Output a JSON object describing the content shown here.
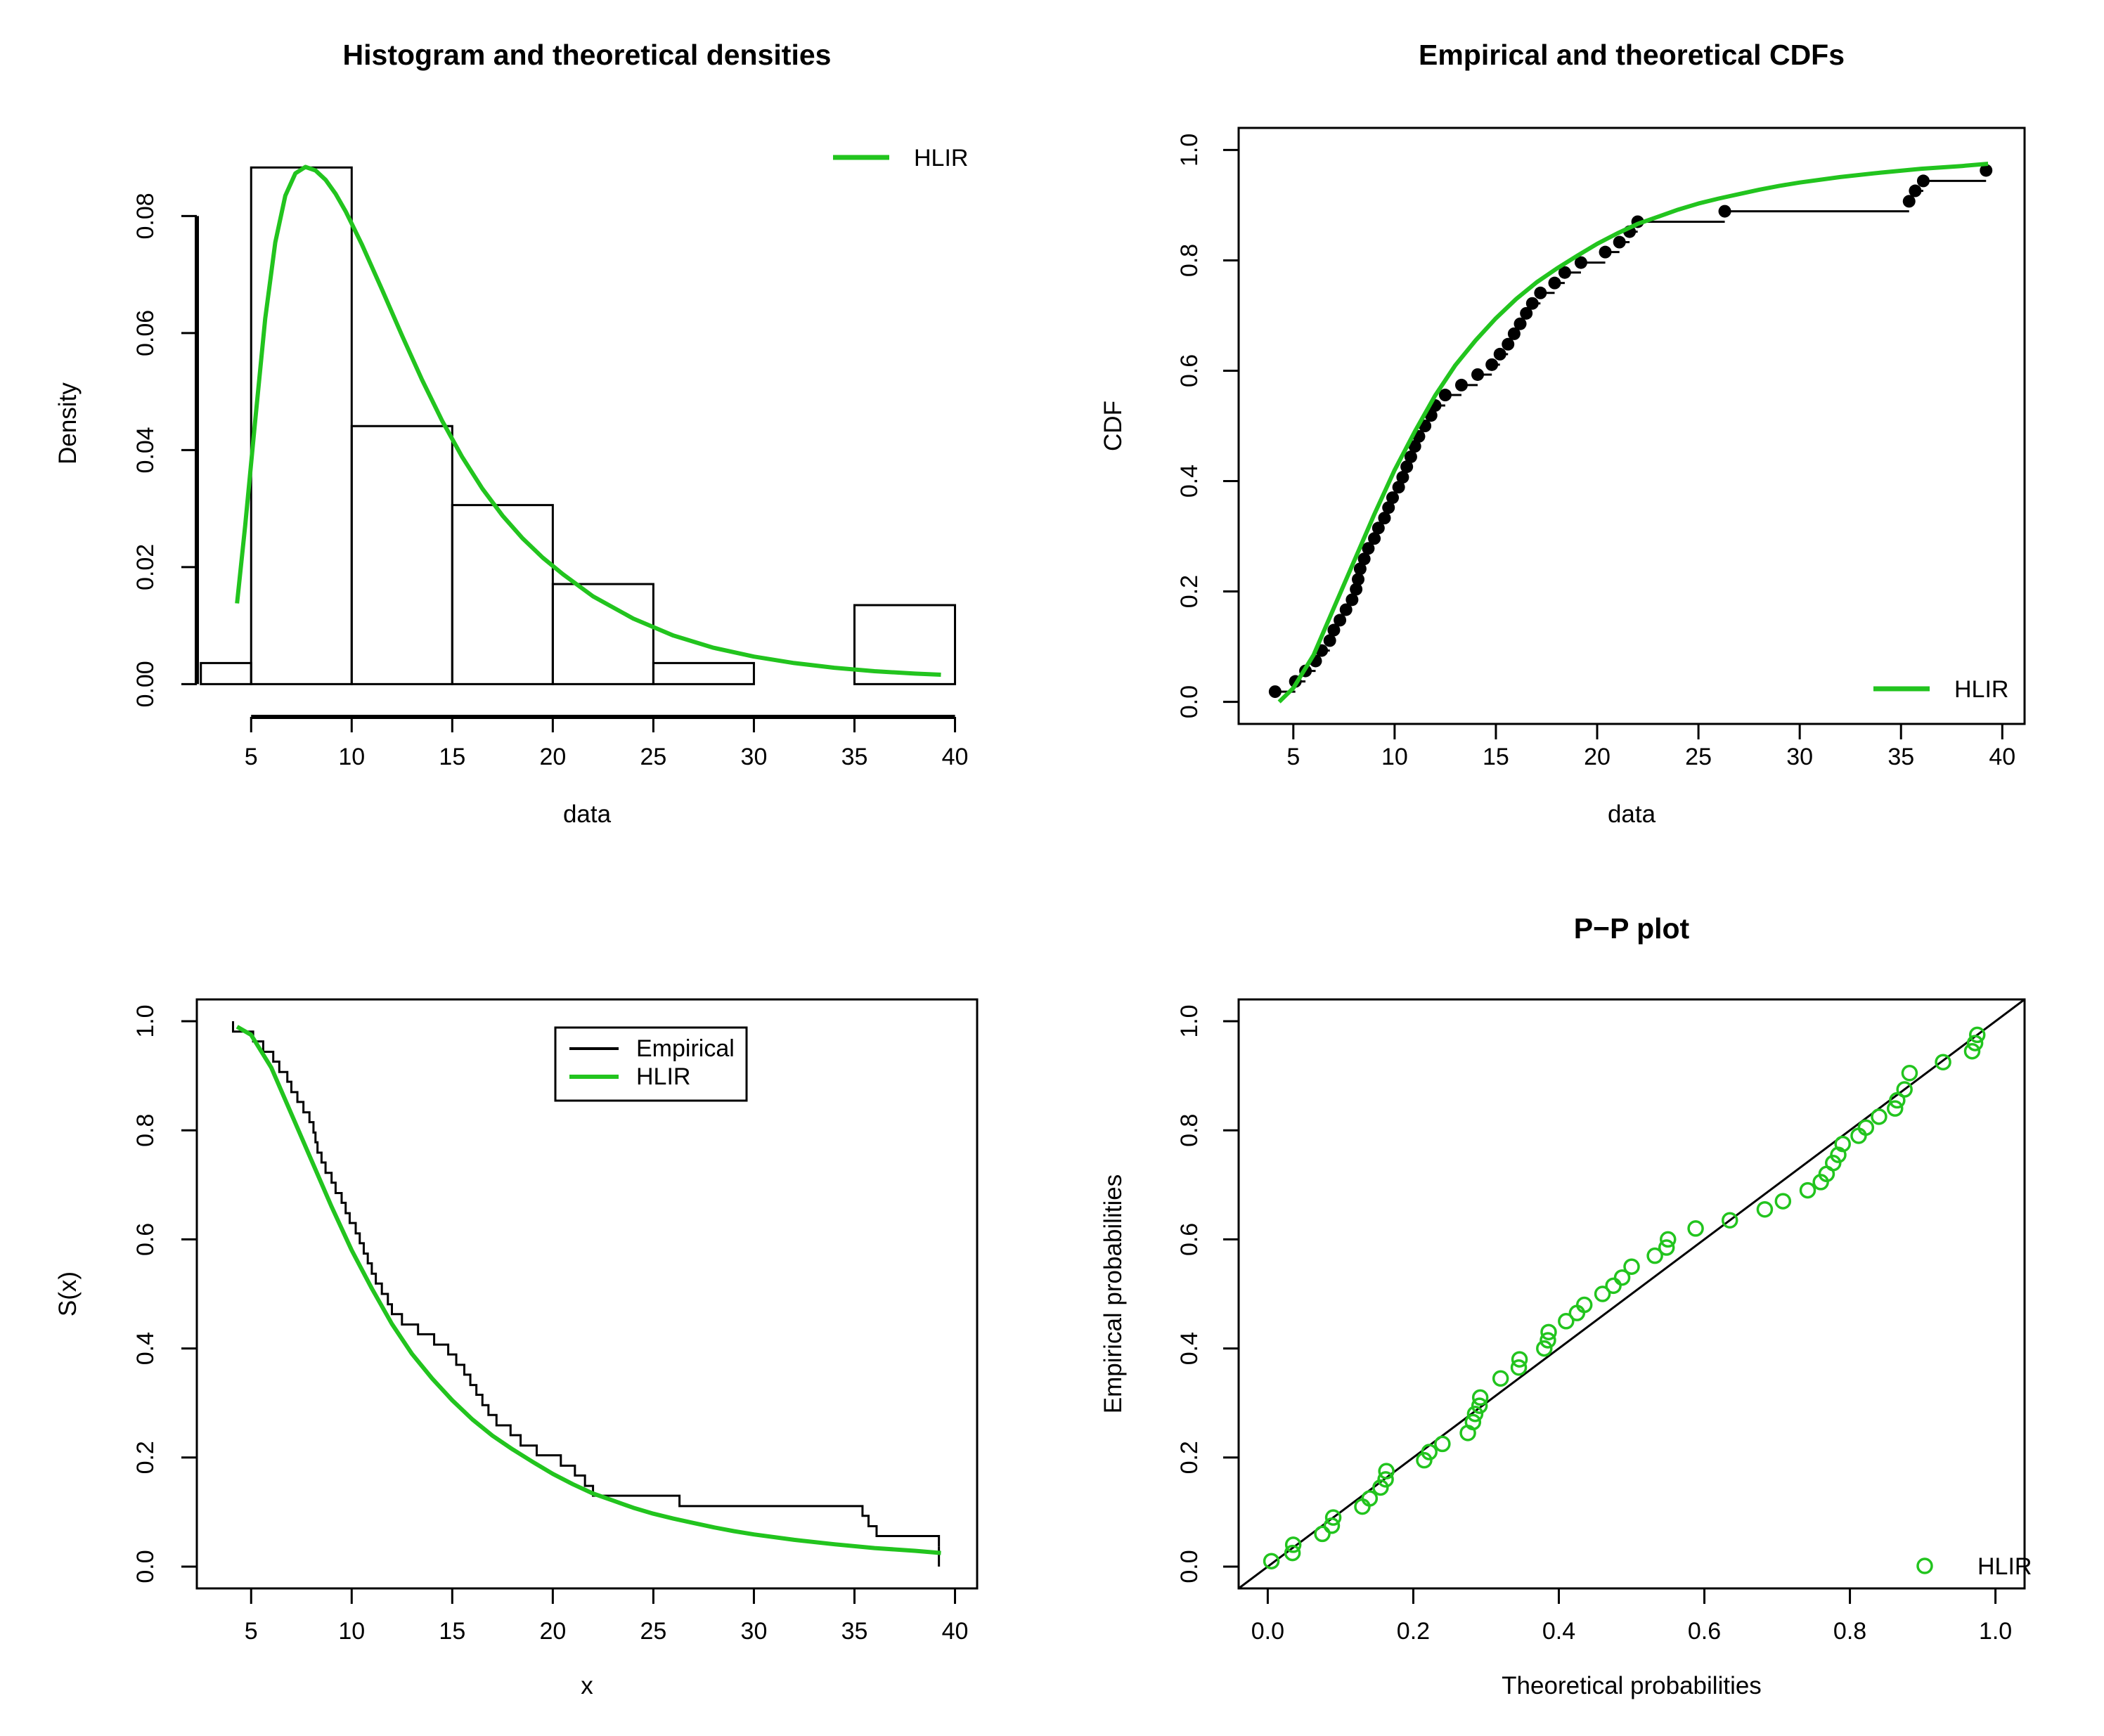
{
  "colors": {
    "fit": "#22c41e",
    "empirical": "#000000",
    "background": "#ffffff"
  },
  "chart_data": [
    {
      "id": "density",
      "type": "histogram+line",
      "title": "Histogram and theoretical densities",
      "xlabel": "data",
      "ylabel": "Density",
      "xlim": [
        2.3,
        41.1
      ],
      "ylim": [
        -0.0032,
        0.0923
      ],
      "xticks": [
        5,
        10,
        15,
        20,
        25,
        30,
        35,
        40
      ],
      "yticks": [
        0.0,
        0.02,
        0.04,
        0.06,
        0.08
      ],
      "xtick_labels": [
        "5",
        "10",
        "15",
        "20",
        "25",
        "30",
        "35",
        "40"
      ],
      "ytick_labels": [
        "0.00",
        "0.02",
        "0.04",
        "0.06",
        "0.08"
      ],
      "x_axis_range": [
        5,
        40
      ],
      "y_axis_range": [
        0,
        0.08
      ],
      "grid": false,
      "legend_position": "top-right",
      "legend": [
        "HLIR"
      ],
      "bins": [
        {
          "x0": 2.5,
          "x1": 5,
          "density": 0.0036
        },
        {
          "x0": 5,
          "x1": 10,
          "density": 0.0883
        },
        {
          "x0": 10,
          "x1": 15,
          "density": 0.0441
        },
        {
          "x0": 15,
          "x1": 20,
          "density": 0.0306
        },
        {
          "x0": 20,
          "x1": 25,
          "density": 0.0171
        },
        {
          "x0": 25,
          "x1": 30,
          "density": 0.0036
        },
        {
          "x0": 30,
          "x1": 35,
          "density": 0.0
        },
        {
          "x0": 35,
          "x1": 40,
          "density": 0.0135
        }
      ],
      "series": [
        {
          "name": "HLIR",
          "x": [
            4.3,
            4.7,
            5.2,
            5.7,
            6.2,
            6.7,
            7.2,
            7.7,
            8.2,
            8.7,
            9.2,
            9.7,
            10.5,
            11.5,
            12.5,
            13.5,
            14.5,
            15.5,
            16.5,
            17.5,
            18.5,
            19.5,
            20.5,
            22,
            24,
            26,
            28,
            30,
            32,
            34,
            36,
            38,
            39.3
          ],
          "y": [
            0.0138,
            0.027,
            0.045,
            0.0625,
            0.0755,
            0.0835,
            0.0873,
            0.0884,
            0.0878,
            0.0862,
            0.0838,
            0.0808,
            0.0752,
            0.0675,
            0.0596,
            0.052,
            0.045,
            0.0388,
            0.0334,
            0.0288,
            0.0249,
            0.0216,
            0.0188,
            0.015,
            0.0112,
            0.0083,
            0.0062,
            0.0047,
            0.0036,
            0.0028,
            0.0022,
            0.0018,
            0.0016
          ]
        }
      ]
    },
    {
      "id": "cdf",
      "type": "step+scatter+line",
      "title": "Empirical and theoretical CDFs",
      "xlabel": "data",
      "ylabel": "CDF",
      "xlim": [
        2.3,
        41.1
      ],
      "ylim": [
        -0.04,
        1.04
      ],
      "xticks": [
        5,
        10,
        15,
        20,
        25,
        30,
        35,
        40
      ],
      "yticks": [
        0.0,
        0.2,
        0.4,
        0.6,
        0.8,
        1.0
      ],
      "xtick_labels": [
        "5",
        "10",
        "15",
        "20",
        "25",
        "30",
        "35",
        "40"
      ],
      "ytick_labels": [
        "0.0",
        "0.2",
        "0.4",
        "0.6",
        "0.8",
        "1.0"
      ],
      "grid": false,
      "legend_position": "bottom-right",
      "legend": [
        "HLIR"
      ],
      "empirical": {
        "x": [
          4.1,
          5.1,
          5.6,
          6.1,
          6.4,
          6.8,
          7.0,
          7.3,
          7.6,
          7.9,
          8.1,
          8.2,
          8.3,
          8.5,
          8.7,
          9.0,
          9.2,
          9.5,
          9.7,
          9.9,
          10.2,
          10.4,
          10.6,
          10.8,
          11.0,
          11.2,
          11.5,
          11.8,
          12.0,
          12.5,
          13.3,
          14.1,
          14.8,
          15.2,
          15.6,
          15.9,
          16.2,
          16.5,
          16.8,
          17.2,
          17.9,
          18.4,
          19.2,
          20.4,
          21.1,
          21.6,
          22.0,
          26.3,
          35.4,
          35.7,
          36.1,
          39.2
        ],
        "y": [
          0.0185,
          0.037,
          0.056,
          0.074,
          0.093,
          0.111,
          0.13,
          0.148,
          0.167,
          0.185,
          0.204,
          0.222,
          0.241,
          0.259,
          0.278,
          0.296,
          0.315,
          0.333,
          0.352,
          0.37,
          0.389,
          0.407,
          0.426,
          0.444,
          0.463,
          0.481,
          0.5,
          0.519,
          0.537,
          0.556,
          0.574,
          0.593,
          0.611,
          0.63,
          0.648,
          0.667,
          0.685,
          0.704,
          0.722,
          0.741,
          0.759,
          0.778,
          0.796,
          0.815,
          0.833,
          0.852,
          0.87,
          0.889,
          0.907,
          0.926,
          0.944,
          0.963
        ]
      },
      "series": [
        {
          "name": "HLIR",
          "x": [
            4.3,
            5,
            6,
            7,
            8,
            9,
            10,
            11,
            12,
            13,
            14,
            15,
            16,
            17,
            18,
            19,
            20,
            21,
            22,
            23,
            24,
            25,
            26,
            27,
            28,
            29,
            30,
            32,
            34,
            36,
            38,
            39.3
          ],
          "y": [
            0.0,
            0.025,
            0.085,
            0.17,
            0.255,
            0.34,
            0.42,
            0.49,
            0.555,
            0.61,
            0.655,
            0.695,
            0.73,
            0.76,
            0.785,
            0.808,
            0.83,
            0.849,
            0.866,
            0.879,
            0.892,
            0.903,
            0.912,
            0.92,
            0.928,
            0.935,
            0.941,
            0.951,
            0.959,
            0.966,
            0.971,
            0.975
          ]
        }
      ]
    },
    {
      "id": "survival",
      "type": "step+line",
      "title": "",
      "xlabel": "x",
      "ylabel": "S(x)",
      "xlim": [
        2.3,
        41.1
      ],
      "ylim": [
        -0.04,
        1.04
      ],
      "xticks": [
        5,
        10,
        15,
        20,
        25,
        30,
        35,
        40
      ],
      "yticks": [
        0.0,
        0.2,
        0.4,
        0.6,
        0.8,
        1.0
      ],
      "xtick_labels": [
        "5",
        "10",
        "15",
        "20",
        "25",
        "30",
        "35",
        "40"
      ],
      "ytick_labels": [
        "0.0",
        "0.2",
        "0.4",
        "0.6",
        "0.8",
        "1.0"
      ],
      "grid": false,
      "legend_position": "top-center",
      "legend": [
        "Empirical",
        "HLIR"
      ],
      "empirical": {
        "x": [
          4.1,
          5.1,
          5.6,
          6.1,
          6.4,
          6.8,
          7.0,
          7.3,
          7.6,
          7.9,
          8.1,
          8.2,
          8.3,
          8.5,
          8.7,
          9.0,
          9.2,
          9.5,
          9.7,
          9.9,
          10.2,
          10.4,
          10.6,
          10.8,
          11.0,
          11.2,
          11.5,
          11.8,
          12.0,
          12.5,
          13.3,
          14.1,
          14.8,
          15.2,
          15.6,
          15.9,
          16.2,
          16.5,
          16.8,
          17.2,
          17.9,
          18.4,
          19.2,
          20.4,
          21.1,
          21.6,
          22.0,
          26.3,
          35.4,
          35.7,
          36.1,
          39.2
        ],
        "y": [
          0.981,
          0.963,
          0.944,
          0.926,
          0.907,
          0.889,
          0.87,
          0.852,
          0.833,
          0.815,
          0.796,
          0.778,
          0.759,
          0.741,
          0.722,
          0.704,
          0.685,
          0.667,
          0.648,
          0.63,
          0.611,
          0.593,
          0.574,
          0.556,
          0.537,
          0.519,
          0.5,
          0.481,
          0.463,
          0.444,
          0.426,
          0.407,
          0.389,
          0.37,
          0.352,
          0.333,
          0.315,
          0.296,
          0.278,
          0.259,
          0.241,
          0.222,
          0.204,
          0.185,
          0.167,
          0.148,
          0.13,
          0.111,
          0.093,
          0.074,
          0.056,
          0.037
        ]
      },
      "series": [
        {
          "name": "HLIR",
          "x": [
            4.3,
            5,
            6,
            7,
            8,
            9,
            10,
            11,
            12,
            13,
            14,
            15,
            16,
            17,
            18,
            19,
            20,
            21,
            22,
            23,
            24,
            25,
            26,
            27,
            28,
            29,
            30,
            32,
            34,
            36,
            38,
            39.3
          ],
          "y": [
            0.99,
            0.975,
            0.915,
            0.83,
            0.745,
            0.66,
            0.58,
            0.51,
            0.445,
            0.39,
            0.345,
            0.305,
            0.27,
            0.24,
            0.215,
            0.192,
            0.17,
            0.151,
            0.134,
            0.121,
            0.108,
            0.097,
            0.088,
            0.08,
            0.072,
            0.065,
            0.059,
            0.049,
            0.041,
            0.034,
            0.029,
            0.025
          ]
        }
      ]
    },
    {
      "id": "pp",
      "type": "scatter+line",
      "title": "P−P plot",
      "xlabel": "Theoretical probabilities",
      "ylabel": "Empirical probabilities",
      "xlim": [
        -0.04,
        1.04
      ],
      "ylim": [
        -0.04,
        1.04
      ],
      "xticks": [
        0.0,
        0.2,
        0.4,
        0.6,
        0.8,
        1.0
      ],
      "yticks": [
        0.0,
        0.2,
        0.4,
        0.6,
        0.8,
        1.0
      ],
      "xtick_labels": [
        "0.0",
        "0.2",
        "0.4",
        "0.6",
        "0.8",
        "1.0"
      ],
      "ytick_labels": [
        "0.0",
        "0.2",
        "0.4",
        "0.6",
        "0.8",
        "1.0"
      ],
      "grid": false,
      "legend_position": "bottom-right",
      "legend": [
        "HLIR"
      ],
      "reference_line": {
        "x": [
          -0.04,
          1.04
        ],
        "y": [
          -0.04,
          1.04
        ]
      },
      "series": [
        {
          "name": "HLIR",
          "x": [
            0.005,
            0.034,
            0.035,
            0.075,
            0.088,
            0.09,
            0.13,
            0.14,
            0.155,
            0.162,
            0.163,
            0.215,
            0.222,
            0.24,
            0.275,
            0.282,
            0.285,
            0.291,
            0.292,
            0.32,
            0.345,
            0.346,
            0.38,
            0.385,
            0.386,
            0.41,
            0.425,
            0.435,
            0.46,
            0.475,
            0.487,
            0.5,
            0.532,
            0.548,
            0.55,
            0.588,
            0.635,
            0.683,
            0.708,
            0.742,
            0.76,
            0.768,
            0.777,
            0.784,
            0.79,
            0.812,
            0.822,
            0.84,
            0.862,
            0.865,
            0.875,
            0.882,
            0.928,
            0.968,
            0.972,
            0.975
          ],
          "y": [
            0.01,
            0.025,
            0.04,
            0.06,
            0.075,
            0.09,
            0.11,
            0.125,
            0.145,
            0.16,
            0.175,
            0.195,
            0.21,
            0.225,
            0.245,
            0.265,
            0.28,
            0.295,
            0.31,
            0.345,
            0.365,
            0.38,
            0.4,
            0.415,
            0.43,
            0.45,
            0.465,
            0.48,
            0.5,
            0.515,
            0.53,
            0.55,
            0.57,
            0.585,
            0.6,
            0.62,
            0.635,
            0.655,
            0.67,
            0.69,
            0.705,
            0.72,
            0.74,
            0.755,
            0.775,
            0.79,
            0.805,
            0.825,
            0.84,
            0.855,
            0.875,
            0.905,
            0.925,
            0.945,
            0.96,
            0.975
          ]
        }
      ]
    }
  ]
}
